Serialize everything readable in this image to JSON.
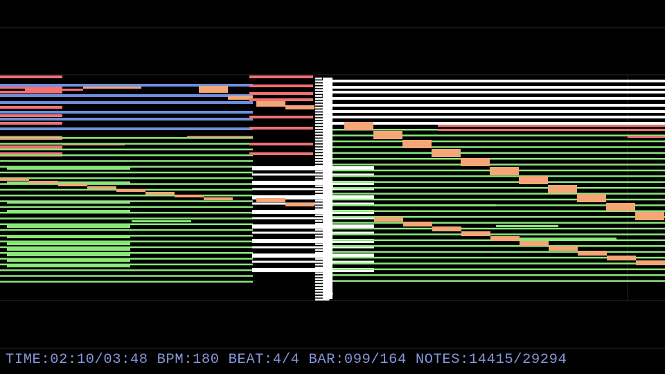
{
  "status": {
    "items": [
      "TIME:02:10/03:48",
      "BPM:180",
      "BEAT:4/4",
      "BAR:099/164",
      "NOTES:14415/29294"
    ]
  }
}
